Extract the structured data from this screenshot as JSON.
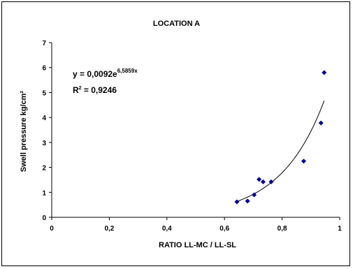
{
  "chart_data": {
    "type": "scatter",
    "title": "LOCATION A",
    "xlabel": "RATIO   LL-MC / LL-SL",
    "ylabel": "Swell pressure kg/cm²",
    "xlim": [
      0,
      1
    ],
    "ylim": [
      0,
      7
    ],
    "x_ticks": [
      "0",
      "0,2",
      "0,4",
      "0,6",
      "0,8",
      "1"
    ],
    "x_tick_values": [
      0,
      0.2,
      0.4,
      0.6,
      0.8,
      1
    ],
    "y_ticks": [
      "0",
      "1",
      "2",
      "3",
      "4",
      "5",
      "6",
      "7"
    ],
    "y_tick_values": [
      0,
      1,
      2,
      3,
      4,
      5,
      6,
      7
    ],
    "grid": false,
    "points": [
      {
        "x": 0.643,
        "y": 0.62
      },
      {
        "x": 0.68,
        "y": 0.65
      },
      {
        "x": 0.703,
        "y": 0.9
      },
      {
        "x": 0.72,
        "y": 1.52
      },
      {
        "x": 0.734,
        "y": 1.42
      },
      {
        "x": 0.762,
        "y": 1.42
      },
      {
        "x": 0.875,
        "y": 2.25
      },
      {
        "x": 0.935,
        "y": 3.78
      },
      {
        "x": 0.946,
        "y": 5.8
      }
    ],
    "point_color": "#00008b",
    "trendline": {
      "type": "exponential",
      "a": 0.0092,
      "b": 6.5859,
      "x_range": [
        0.643,
        0.946
      ],
      "equation_prefix": "y = 0,0092e",
      "equation_exponent": "6,5859x",
      "r2_prefix": "R",
      "r2_sup": "2",
      "r2_value": " = 0,9246"
    }
  }
}
